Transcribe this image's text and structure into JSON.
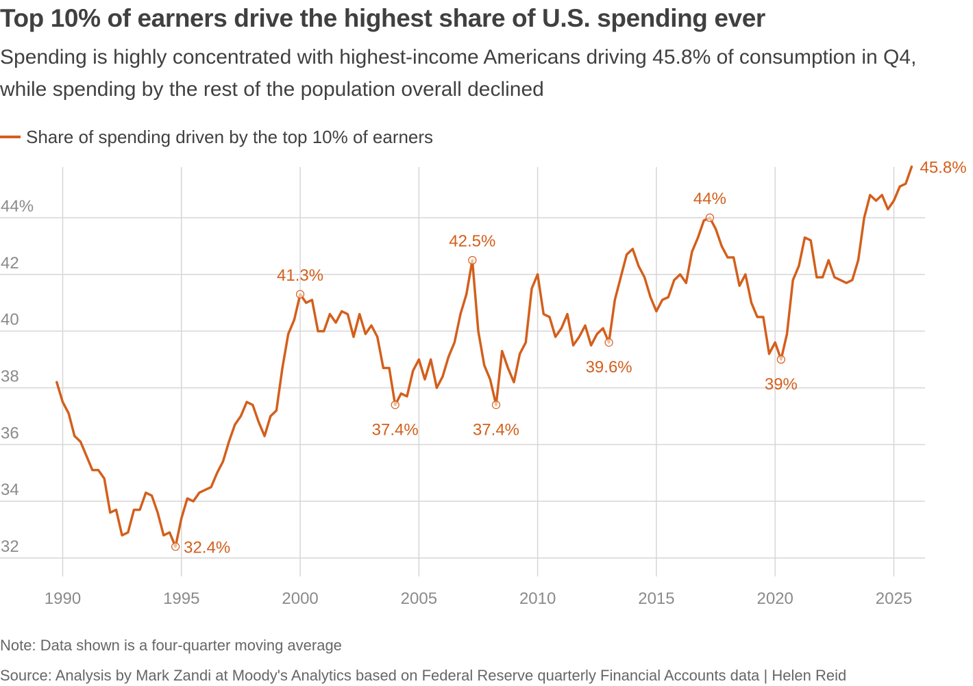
{
  "title": "Top 10% of earners drive the highest share of U.S. spending ever",
  "subtitle": "Spending is highly concentrated with highest-income Americans driving 45.8% of consumption in Q4, while spending by the rest of the population overall declined",
  "legend": {
    "label": "Share of spending driven by the top 10% of earners"
  },
  "note": "Note: Data shown is a four-quarter moving average",
  "source": "Source: Analysis by Mark Zandi at Moody's Analytics based on Federal Reserve quarterly Financial Accounts data | Helen Reid",
  "colors": {
    "line": "#d35f1c",
    "grid": "#d6d6d6",
    "tick_label": "#8a8a8a",
    "text": "#404040"
  },
  "chart_data": {
    "type": "line",
    "title": "Top 10% of earners drive the highest share of U.S. spending ever",
    "xlabel": "",
    "ylabel": "",
    "xlim": [
      1989.5,
      2026.8
    ],
    "ylim": [
      31.5,
      46
    ],
    "grid": true,
    "legend_placement": "top-left",
    "x_ticks": [
      {
        "value": 1990,
        "label": "1990"
      },
      {
        "value": 1995,
        "label": "1995"
      },
      {
        "value": 2000,
        "label": "2000"
      },
      {
        "value": 2005,
        "label": "2005"
      },
      {
        "value": 2010,
        "label": "2010"
      },
      {
        "value": 2015,
        "label": "2015"
      },
      {
        "value": 2020,
        "label": "2020"
      },
      {
        "value": 2025,
        "label": "2025"
      }
    ],
    "y_ticks": [
      {
        "value": 32,
        "label": "32"
      },
      {
        "value": 34,
        "label": "34"
      },
      {
        "value": 36,
        "label": "36"
      },
      {
        "value": 38,
        "label": "38"
      },
      {
        "value": 40,
        "label": "40"
      },
      {
        "value": 42,
        "label": "42"
      },
      {
        "value": 44,
        "label": "44%"
      }
    ],
    "series": [
      {
        "name": "Share of spending driven by the top 10% of earners",
        "points": [
          [
            1989.75,
            38.2
          ],
          [
            1990.0,
            37.5
          ],
          [
            1990.25,
            37.1
          ],
          [
            1990.5,
            36.3
          ],
          [
            1990.75,
            36.1
          ],
          [
            1991.0,
            35.6
          ],
          [
            1991.25,
            35.1
          ],
          [
            1991.5,
            35.1
          ],
          [
            1991.75,
            34.8
          ],
          [
            1992.0,
            33.6
          ],
          [
            1992.25,
            33.7
          ],
          [
            1992.5,
            32.8
          ],
          [
            1992.75,
            32.9
          ],
          [
            1993.0,
            33.7
          ],
          [
            1993.25,
            33.7
          ],
          [
            1993.5,
            34.3
          ],
          [
            1993.75,
            34.2
          ],
          [
            1994.0,
            33.6
          ],
          [
            1994.25,
            32.8
          ],
          [
            1994.5,
            32.9
          ],
          [
            1994.75,
            32.4
          ],
          [
            1995.0,
            33.4
          ],
          [
            1995.25,
            34.1
          ],
          [
            1995.5,
            34.0
          ],
          [
            1995.75,
            34.3
          ],
          [
            1996.0,
            34.4
          ],
          [
            1996.25,
            34.5
          ],
          [
            1996.5,
            35.0
          ],
          [
            1996.75,
            35.4
          ],
          [
            1997.0,
            36.1
          ],
          [
            1997.25,
            36.7
          ],
          [
            1997.5,
            37.0
          ],
          [
            1997.75,
            37.5
          ],
          [
            1998.0,
            37.4
          ],
          [
            1998.25,
            36.8
          ],
          [
            1998.5,
            36.3
          ],
          [
            1998.75,
            37.0
          ],
          [
            1999.0,
            37.2
          ],
          [
            1999.25,
            38.7
          ],
          [
            1999.5,
            39.9
          ],
          [
            1999.75,
            40.4
          ],
          [
            2000.0,
            41.3
          ],
          [
            2000.25,
            41.0
          ],
          [
            2000.5,
            41.1
          ],
          [
            2000.75,
            40.0
          ],
          [
            2001.0,
            40.0
          ],
          [
            2001.25,
            40.6
          ],
          [
            2001.5,
            40.3
          ],
          [
            2001.75,
            40.7
          ],
          [
            2002.0,
            40.6
          ],
          [
            2002.25,
            39.8
          ],
          [
            2002.5,
            40.6
          ],
          [
            2002.75,
            39.9
          ],
          [
            2003.0,
            40.2
          ],
          [
            2003.25,
            39.8
          ],
          [
            2003.5,
            38.7
          ],
          [
            2003.75,
            38.7
          ],
          [
            2004.0,
            37.4
          ],
          [
            2004.25,
            37.8
          ],
          [
            2004.5,
            37.7
          ],
          [
            2004.75,
            38.6
          ],
          [
            2005.0,
            39.0
          ],
          [
            2005.25,
            38.3
          ],
          [
            2005.5,
            39.0
          ],
          [
            2005.75,
            38.0
          ],
          [
            2006.0,
            38.4
          ],
          [
            2006.25,
            39.1
          ],
          [
            2006.5,
            39.6
          ],
          [
            2006.75,
            40.6
          ],
          [
            2007.0,
            41.3
          ],
          [
            2007.25,
            42.5
          ],
          [
            2007.5,
            40.0
          ],
          [
            2007.75,
            38.8
          ],
          [
            2008.0,
            38.3
          ],
          [
            2008.25,
            37.4
          ],
          [
            2008.5,
            39.3
          ],
          [
            2008.75,
            38.7
          ],
          [
            2009.0,
            38.2
          ],
          [
            2009.25,
            39.2
          ],
          [
            2009.5,
            39.6
          ],
          [
            2009.75,
            41.5
          ],
          [
            2010.0,
            42.0
          ],
          [
            2010.25,
            40.6
          ],
          [
            2010.5,
            40.5
          ],
          [
            2010.75,
            39.8
          ],
          [
            2011.0,
            40.1
          ],
          [
            2011.25,
            40.6
          ],
          [
            2011.5,
            39.5
          ],
          [
            2011.75,
            39.8
          ],
          [
            2012.0,
            40.2
          ],
          [
            2012.25,
            39.5
          ],
          [
            2012.5,
            39.9
          ],
          [
            2012.75,
            40.1
          ],
          [
            2013.0,
            39.6
          ],
          [
            2013.25,
            41.1
          ],
          [
            2013.5,
            41.9
          ],
          [
            2013.75,
            42.7
          ],
          [
            2014.0,
            42.9
          ],
          [
            2014.25,
            42.3
          ],
          [
            2014.5,
            41.9
          ],
          [
            2014.75,
            41.2
          ],
          [
            2015.0,
            40.7
          ],
          [
            2015.25,
            41.1
          ],
          [
            2015.5,
            41.2
          ],
          [
            2015.75,
            41.8
          ],
          [
            2016.0,
            42.0
          ],
          [
            2016.25,
            41.7
          ],
          [
            2016.5,
            42.8
          ],
          [
            2016.75,
            43.3
          ],
          [
            2017.0,
            43.9
          ],
          [
            2017.25,
            44.0
          ],
          [
            2017.5,
            43.6
          ],
          [
            2017.75,
            43.0
          ],
          [
            2018.0,
            42.6
          ],
          [
            2018.25,
            42.6
          ],
          [
            2018.5,
            41.6
          ],
          [
            2018.75,
            42.0
          ],
          [
            2019.0,
            41.0
          ],
          [
            2019.25,
            40.5
          ],
          [
            2019.5,
            40.5
          ],
          [
            2019.75,
            39.2
          ],
          [
            2020.0,
            39.6
          ],
          [
            2020.25,
            39.0
          ],
          [
            2020.5,
            39.9
          ],
          [
            2020.75,
            41.8
          ],
          [
            2021.0,
            42.3
          ],
          [
            2021.25,
            43.3
          ],
          [
            2021.5,
            43.2
          ],
          [
            2021.75,
            41.9
          ],
          [
            2022.0,
            41.9
          ],
          [
            2022.25,
            42.5
          ],
          [
            2022.5,
            41.9
          ],
          [
            2022.75,
            41.8
          ],
          [
            2023.0,
            41.7
          ],
          [
            2023.25,
            41.8
          ],
          [
            2023.5,
            42.5
          ],
          [
            2023.75,
            44.0
          ],
          [
            2024.0,
            44.8
          ],
          [
            2024.25,
            44.6
          ],
          [
            2024.5,
            44.8
          ],
          [
            2024.75,
            44.3
          ],
          [
            2025.0,
            44.6
          ],
          [
            2025.25,
            45.1
          ],
          [
            2025.5,
            45.2
          ],
          [
            2025.75,
            45.8
          ]
        ]
      }
    ],
    "annotations": [
      {
        "x": 1994.75,
        "y": 32.4,
        "label": "32.4%",
        "position": "right",
        "marker": true
      },
      {
        "x": 2000.0,
        "y": 41.3,
        "label": "41.3%",
        "position": "above",
        "marker": true
      },
      {
        "x": 2004.0,
        "y": 37.4,
        "label": "37.4%",
        "position": "below",
        "marker": true
      },
      {
        "x": 2007.25,
        "y": 42.5,
        "label": "42.5%",
        "position": "above",
        "marker": true
      },
      {
        "x": 2008.25,
        "y": 37.4,
        "label": "37.4%",
        "position": "below",
        "marker": true
      },
      {
        "x": 2013.0,
        "y": 39.6,
        "label": "39.6%",
        "position": "below",
        "marker": true
      },
      {
        "x": 2017.25,
        "y": 44.0,
        "label": "44%",
        "position": "above",
        "marker": true
      },
      {
        "x": 2020.25,
        "y": 39.0,
        "label": "39%",
        "position": "below",
        "marker": true
      },
      {
        "x": 2025.75,
        "y": 45.8,
        "label": "45.8%",
        "position": "right",
        "marker": false
      }
    ]
  }
}
